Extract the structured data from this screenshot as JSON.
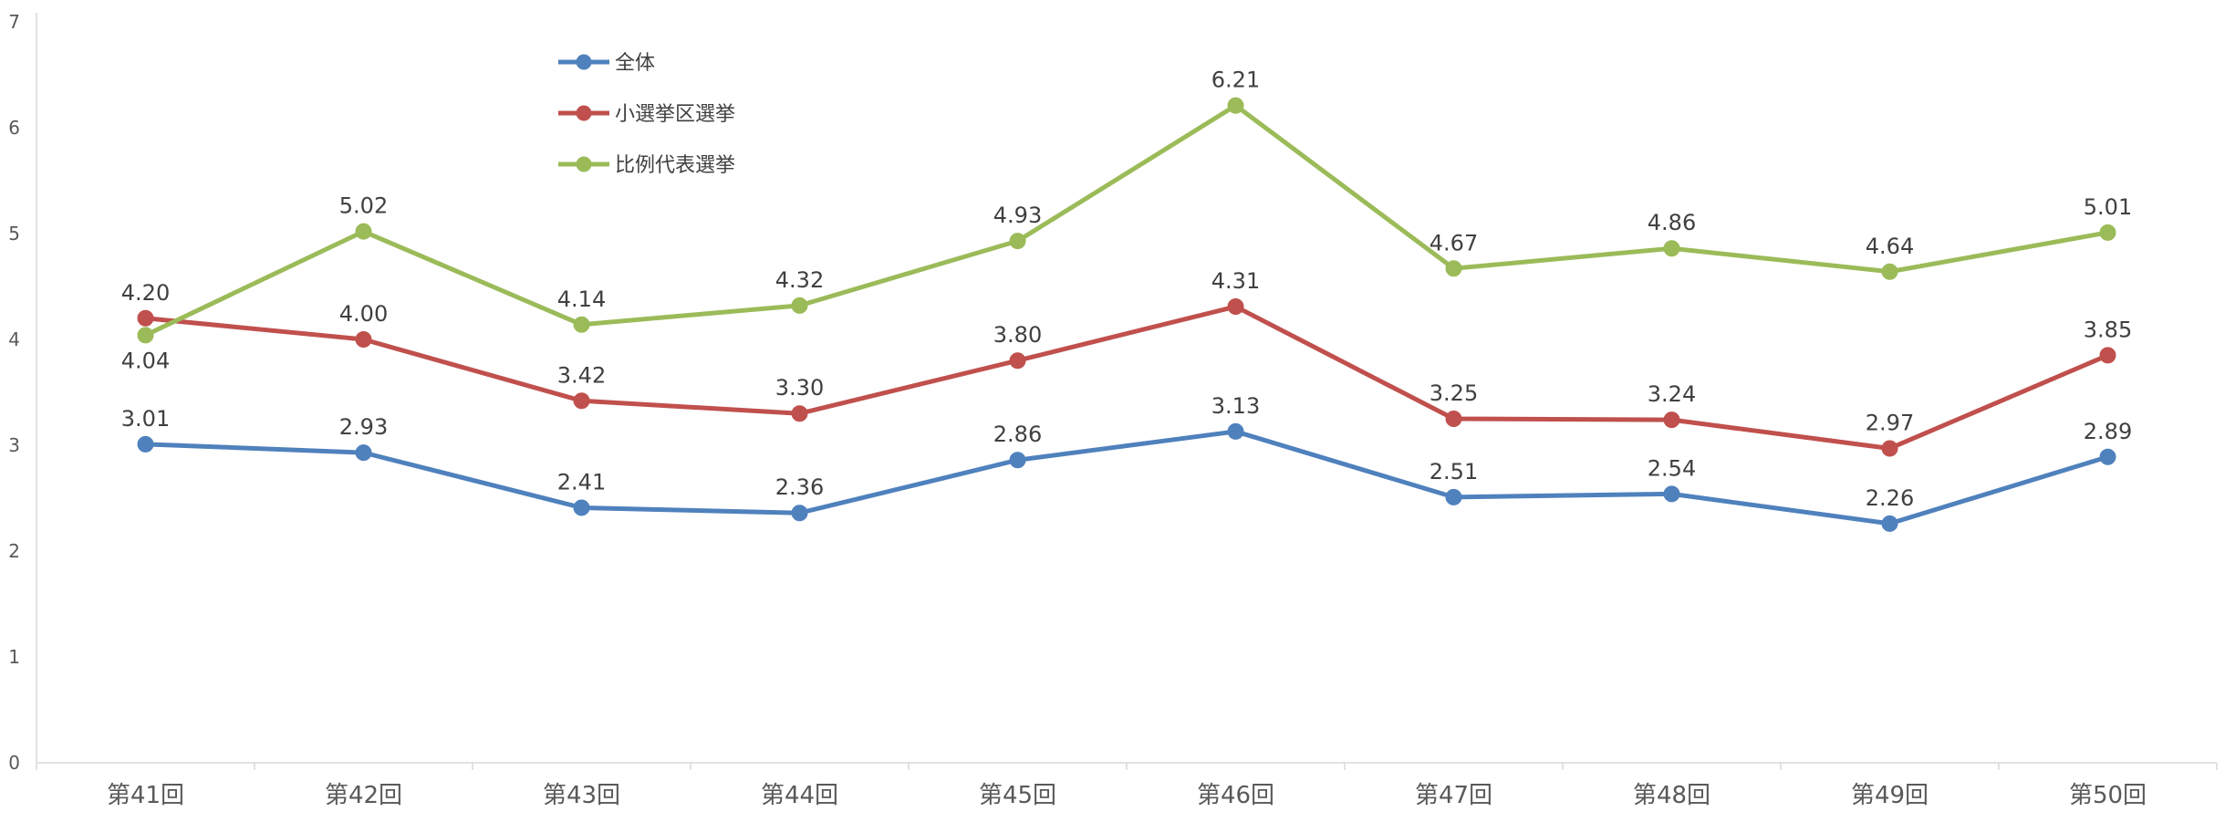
{
  "chart_data": {
    "type": "line",
    "categories": [
      "第41回",
      "第42回",
      "第43回",
      "第44回",
      "第45回",
      "第46回",
      "第47回",
      "第48回",
      "第49回",
      "第50回"
    ],
    "ylim": [
      0,
      7
    ],
    "yticks": [
      "0",
      "1",
      "2",
      "3",
      "4",
      "5",
      "6",
      "7"
    ],
    "grid": false,
    "legend_position": "top-left",
    "series": [
      {
        "name": "全体",
        "color": "#4F81BD",
        "values": [
          3.01,
          2.93,
          2.41,
          2.36,
          2.86,
          3.13,
          2.51,
          2.54,
          2.26,
          2.89
        ],
        "labels": [
          "3.01",
          "2.93",
          "2.41",
          "2.36",
          "2.86",
          "3.13",
          "2.51",
          "2.54",
          "2.26",
          "2.89"
        ]
      },
      {
        "name": "小選挙区選挙",
        "color": "#C0504D",
        "values": [
          4.2,
          4.0,
          3.42,
          3.3,
          3.8,
          4.31,
          3.25,
          3.24,
          2.97,
          3.85
        ],
        "labels": [
          "4.20",
          "4.00",
          "3.42",
          "3.30",
          "3.80",
          "4.31",
          "3.25",
          "3.24",
          "2.97",
          "3.85"
        ]
      },
      {
        "name": "比例代表選挙",
        "color": "#9BBB59",
        "values": [
          4.04,
          5.02,
          4.14,
          4.32,
          4.93,
          6.21,
          4.67,
          4.86,
          4.64,
          5.01
        ],
        "labels": [
          "4.04",
          "5.02",
          "4.14",
          "4.32",
          "4.93",
          "6.21",
          "4.67",
          "4.86",
          "4.64",
          "5.01"
        ]
      }
    ]
  }
}
